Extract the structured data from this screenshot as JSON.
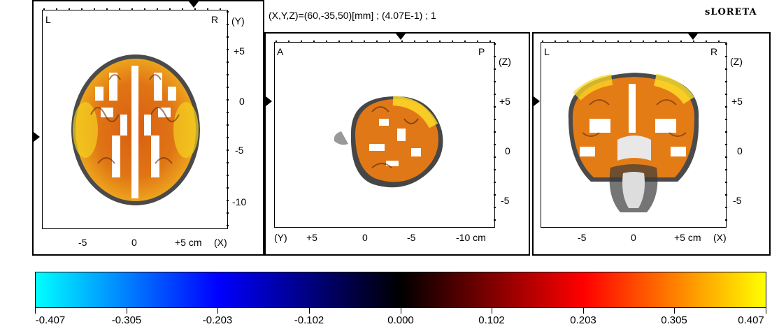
{
  "header": {
    "coords_text": "(X,Y,Z)=(60,-35,50)[mm]  ;  (4.07E-1)  ;  1",
    "method_label": "sLORETA"
  },
  "views": {
    "axial": {
      "corner_left": "L",
      "corner_right": "R",
      "vertical_axis_name": "(Y)",
      "vertical_ticks": [
        "+5",
        "0",
        "-5",
        "-10"
      ],
      "horizontal_ticks": [
        "-5",
        "0",
        "+5 cm"
      ],
      "horizontal_axis_name": "(X)"
    },
    "sagittal": {
      "corner_left": "A",
      "corner_right": "P",
      "vertical_axis_name": "(Z)",
      "vertical_ticks": [
        "+5",
        "0",
        "-5"
      ],
      "horizontal_axis_name": "(Y)",
      "horizontal_ticks": [
        "+5",
        "0",
        "-5",
        "-10 cm"
      ]
    },
    "coronal": {
      "corner_left": "L",
      "corner_right": "R",
      "vertical_axis_name": "(Z)",
      "vertical_ticks": [
        "+5",
        "0",
        "-5"
      ],
      "horizontal_ticks": [
        "-5",
        "0",
        "+5 cm"
      ],
      "horizontal_axis_name": "(X)"
    }
  },
  "colorbar": {
    "labels": [
      "-0.407",
      "-0.305",
      "-0.203",
      "-0.102",
      "0.000",
      "0.102",
      "0.203",
      "0.305",
      "0.407"
    ],
    "colors": [
      "#00ffff",
      "#0000ff",
      "#000000",
      "#ff0000",
      "#ffff00"
    ]
  },
  "colors": {
    "activation_low": "#c84a0a",
    "activation_mid": "#ee8a10",
    "activation_high": "#ffee22"
  }
}
